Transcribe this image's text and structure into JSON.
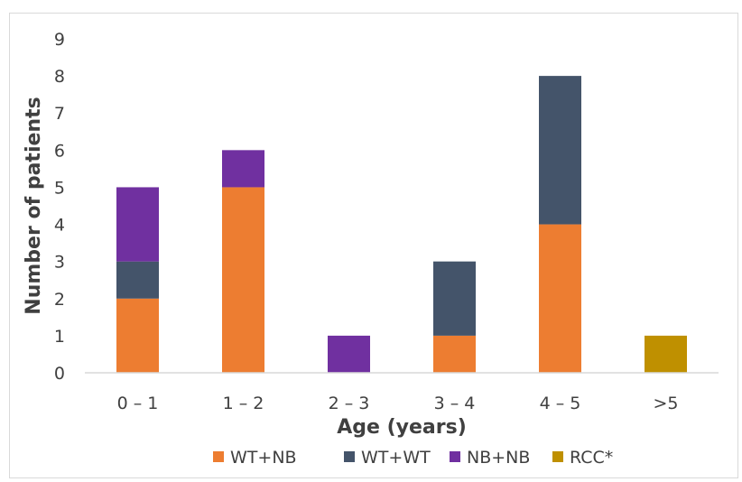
{
  "chart_data": {
    "type": "bar",
    "stacked": true,
    "title": "",
    "xlabel": "Age (years)",
    "ylabel": "Number of patients",
    "categories": [
      "0 – 1",
      "1 – 2",
      "2 – 3",
      "3 – 4",
      "4 – 5",
      ">5"
    ],
    "ylim": [
      0,
      9
    ],
    "yticks": [
      0,
      1,
      2,
      3,
      4,
      5,
      6,
      7,
      8,
      9
    ],
    "grid": false,
    "legend_position": "bottom",
    "series": [
      {
        "name": "WT+NB",
        "color": "#ED7D31",
        "values": [
          2,
          5,
          0,
          1,
          4,
          0
        ]
      },
      {
        "name": "WT+WT",
        "color": "#44546A",
        "values": [
          1,
          0,
          0,
          2,
          4,
          0
        ]
      },
      {
        "name": "NB+NB",
        "color": "#7030A0",
        "values": [
          2,
          1,
          1,
          0,
          0,
          0
        ]
      },
      {
        "name": "RCC*",
        "color": "#BF9000",
        "values": [
          0,
          0,
          0,
          0,
          0,
          1
        ]
      }
    ]
  }
}
